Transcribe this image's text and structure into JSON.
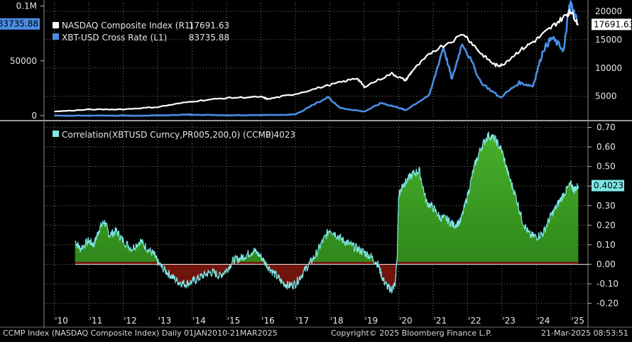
{
  "chart_data": [
    {
      "type": "line",
      "panel": "upper",
      "series": [
        {
          "name": "NASDAQ Composite Index",
          "axis": "R1",
          "last_value_label": "17691.63",
          "color": "#ffffff",
          "x": [
            2010.0,
            2011.0,
            2012.0,
            2013.0,
            2014.0,
            2015.0,
            2016.0,
            2016.2,
            2017.0,
            2018.0,
            2018.8,
            2019.0,
            2019.8,
            2020.2,
            2020.4,
            2021.0,
            2021.9,
            2022.4,
            2022.8,
            2023.0,
            2023.5,
            2024.0,
            2024.5,
            2024.9,
            2025.0,
            2025.22
          ],
          "values": [
            2300,
            2650,
            2700,
            3100,
            4100,
            4700,
            4900,
            4500,
            5400,
            7000,
            8200,
            6700,
            9000,
            7800,
            9500,
            13000,
            16000,
            12500,
            10500,
            10500,
            13000,
            15000,
            17500,
            19500,
            20100,
            17691.63
          ]
        },
        {
          "name": "XBT-USD Cross Rate",
          "axis": "L1",
          "last_value_label": "83735.88",
          "color": "#4a8ee6",
          "x": [
            2010.0,
            2011.0,
            2012.0,
            2013.0,
            2013.9,
            2014.0,
            2015.0,
            2016.0,
            2017.0,
            2017.95,
            2018.3,
            2019.0,
            2019.5,
            2020.0,
            2020.2,
            2020.9,
            2021.3,
            2021.55,
            2021.85,
            2022.4,
            2022.95,
            2023.5,
            2023.9,
            2024.2,
            2024.45,
            2024.8,
            2024.95,
            2025.0,
            2025.22
          ],
          "values": [
            0,
            1,
            5,
            13,
            1000,
            800,
            300,
            430,
            1000,
            17000,
            7000,
            3700,
            11500,
            7200,
            5000,
            19000,
            63000,
            33000,
            67000,
            30000,
            16500,
            30000,
            27000,
            60000,
            71000,
            60000,
            98000,
            102000,
            83735.88
          ]
        }
      ],
      "right_axis": {
        "ticks": [
          5000,
          10000,
          15000,
          20000
        ],
        "tick_labels": [
          "5000",
          "10000",
          "15000",
          "20000"
        ],
        "ylim": [
          1200,
          21500
        ]
      },
      "left_axis": {
        "ticks": [
          0,
          50000,
          100000
        ],
        "tick_labels": [
          "0",
          "50000",
          "0.1M"
        ],
        "ylim": [
          -2000,
          103000
        ]
      }
    },
    {
      "type": "area",
      "panel": "lower",
      "series": [
        {
          "name": "Correlation(XBTUSD Curncy,PR005,200,0) (CCMP)",
          "last_value_label": "0.4023",
          "color": "#7fe8e8",
          "positive_fill": "#3a9a22",
          "negative_fill": "#8a1a14",
          "x": [
            2010.6,
            2010.75,
            2011.0,
            2011.15,
            2011.3,
            2011.45,
            2011.6,
            2011.8,
            2012.0,
            2012.25,
            2012.5,
            2012.7,
            2012.9,
            2013.0,
            2013.2,
            2013.4,
            2013.6,
            2013.8,
            2014.0,
            2014.2,
            2014.4,
            2014.6,
            2014.8,
            2015.0,
            2015.2,
            2015.4,
            2015.6,
            2015.8,
            2016.0,
            2016.2,
            2016.4,
            2016.6,
            2016.8,
            2017.0,
            2017.2,
            2017.4,
            2017.6,
            2017.8,
            2018.0,
            2018.2,
            2018.4,
            2018.6,
            2018.8,
            2019.0,
            2019.2,
            2019.4,
            2019.55,
            2019.7,
            2019.8,
            2019.9,
            2019.96,
            2020.0,
            2020.1,
            2020.2,
            2020.4,
            2020.6,
            2020.8,
            2021.0,
            2021.2,
            2021.4,
            2021.6,
            2021.8,
            2022.0,
            2022.2,
            2022.4,
            2022.6,
            2022.8,
            2023.0,
            2023.2,
            2023.4,
            2023.6,
            2023.8,
            2024.0,
            2024.2,
            2024.4,
            2024.6,
            2024.8,
            2025.0,
            2025.1,
            2025.22
          ],
          "values": [
            0.12,
            0.08,
            0.12,
            0.1,
            0.18,
            0.22,
            0.15,
            0.17,
            0.12,
            0.08,
            0.12,
            0.08,
            0.05,
            0.01,
            -0.03,
            -0.06,
            -0.09,
            -0.1,
            -0.09,
            -0.07,
            -0.05,
            -0.04,
            -0.06,
            -0.03,
            0.02,
            0.03,
            0.05,
            0.07,
            0.04,
            -0.01,
            -0.05,
            -0.09,
            -0.11,
            -0.1,
            -0.05,
            0.0,
            0.05,
            0.12,
            0.18,
            0.15,
            0.12,
            0.1,
            0.08,
            0.06,
            0.04,
            0.0,
            -0.08,
            -0.12,
            -0.13,
            -0.1,
            0.05,
            0.35,
            0.4,
            0.42,
            0.46,
            0.48,
            0.32,
            0.29,
            0.24,
            0.23,
            0.2,
            0.22,
            0.35,
            0.5,
            0.6,
            0.66,
            0.64,
            0.58,
            0.45,
            0.35,
            0.22,
            0.15,
            0.14,
            0.16,
            0.24,
            0.3,
            0.36,
            0.41,
            0.38,
            0.4023
          ]
        }
      ],
      "right_axis": {
        "ticks": [
          -0.2,
          -0.1,
          0.0,
          0.1,
          0.2,
          0.3,
          0.4,
          0.5,
          0.6,
          0.7
        ],
        "tick_labels": [
          "-0.20",
          "-0.10",
          "0.00",
          "0.10",
          "0.20",
          "0.30",
          "0.40",
          "0.50",
          "0.60",
          "0.70"
        ],
        "ylim": [
          -0.245,
          0.72
        ]
      },
      "x_axis": {
        "xlim": [
          2009.7,
          2025.5
        ],
        "ticks": [
          2010,
          2011,
          2012,
          2013,
          2014,
          2015,
          2016,
          2017,
          2018,
          2019,
          2020,
          2021,
          2022,
          2023,
          2024,
          2025
        ],
        "tick_labels": [
          "'10",
          "'11",
          "'12",
          "'13",
          "'14",
          "'15",
          "'16",
          "'17",
          "'18",
          "'19",
          "'20",
          "'21",
          "'22",
          "'23",
          "'24",
          "'25"
        ]
      }
    }
  ],
  "legend": {
    "nasdaq": {
      "label": "NASDAQ Composite Index  (R1)",
      "value": "17691.63"
    },
    "xbt": {
      "label": "XBT-USD Cross Rate  (L1)",
      "value": "83735.88"
    },
    "corr": {
      "label": "Correlation(XBTUSD Curncy,PR005,200,0) (CCMP)",
      "value": "0.4023"
    }
  },
  "footer": {
    "left": "CCMP Index (NASDAQ Composite Index)  Daily 01JAN2010-21MAR2025",
    "center": "Copyright© 2025 Bloomberg Finance L.P.",
    "right": "21-Mar-2025 08:53:51"
  },
  "colors": {
    "background": "#000000",
    "grid": "#7a7a7a",
    "nasdaq": "#ffffff",
    "xbt": "#4a8ee6",
    "corr": "#7fe8e8",
    "pos_fill": "#3a9a22",
    "neg_fill": "#8a1a14"
  }
}
